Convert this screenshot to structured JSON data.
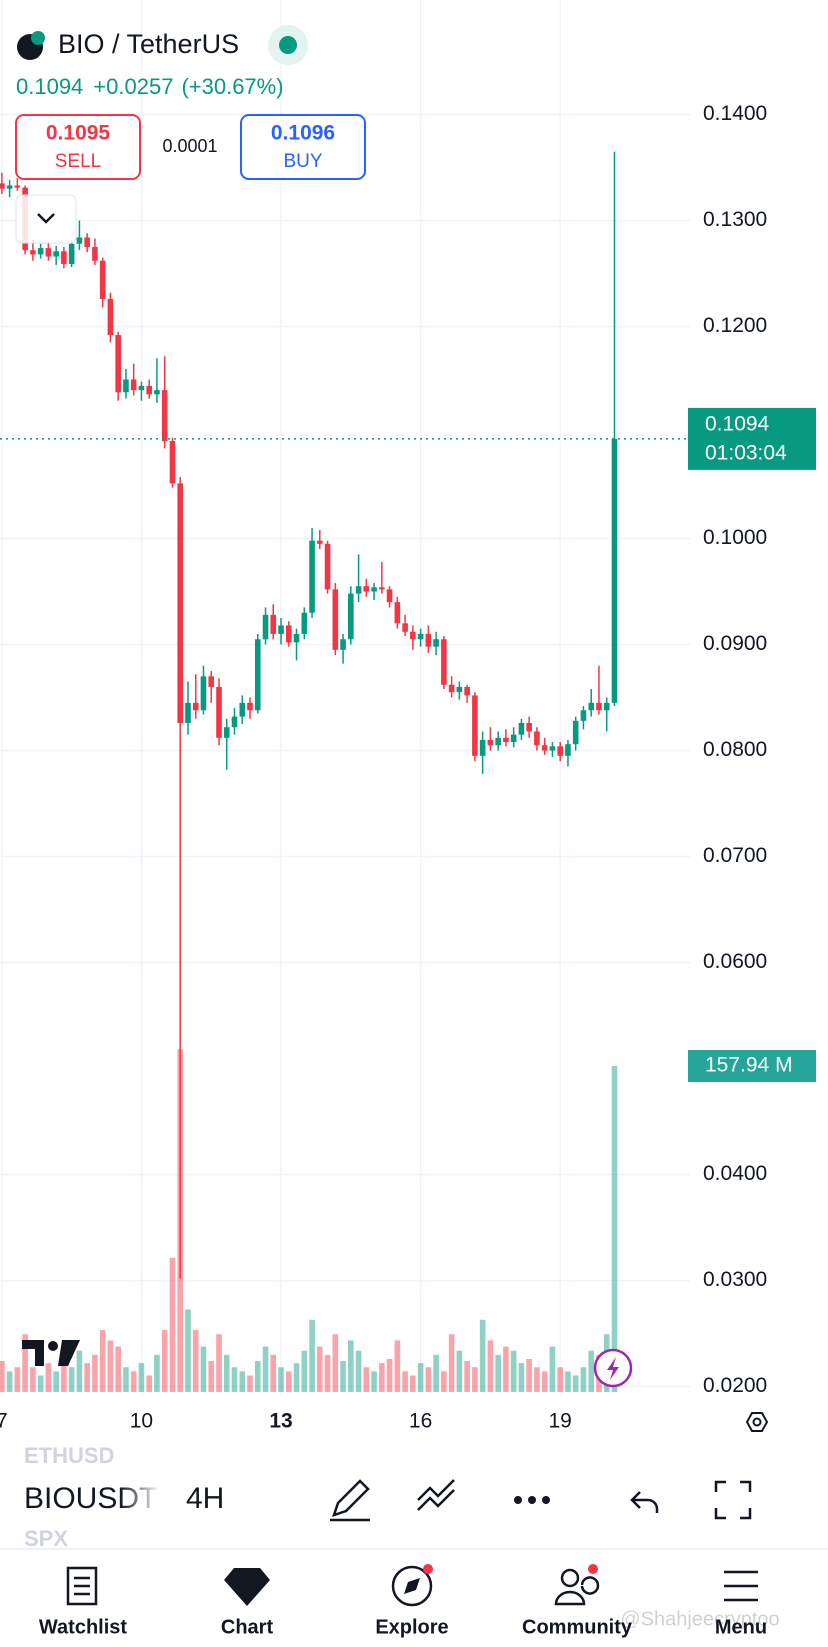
{
  "header": {
    "symbol": "BIO / TetherUS",
    "price": "0.1094",
    "change": "+0.0257",
    "change_pct": "(+30.67%)"
  },
  "trade": {
    "sell_price": "0.1095",
    "sell": "SELL",
    "spread": "0.0001",
    "buy_price": "0.1096",
    "buy": "BUY"
  },
  "chart_data": {
    "type": "candlestick",
    "x": [
      7,
      7.167,
      7.333,
      7.5,
      7.667,
      7.833,
      8,
      8.167,
      8.333,
      8.5,
      8.667,
      8.833,
      9,
      9.167,
      9.333,
      9.5,
      9.667,
      9.833,
      10,
      10.167,
      10.333,
      10.5,
      10.667,
      10.833,
      11,
      11.167,
      11.333,
      11.5,
      11.667,
      11.833,
      12,
      12.167,
      12.333,
      12.5,
      12.667,
      12.833,
      13,
      13.167,
      13.333,
      13.5,
      13.667,
      13.833,
      14,
      14.167,
      14.333,
      14.5,
      14.667,
      14.833,
      15,
      15.167,
      15.333,
      15.5,
      15.667,
      15.833,
      16,
      16.167,
      16.333,
      16.5,
      16.667,
      16.833,
      17,
      17.167,
      17.333,
      17.5,
      17.667,
      17.833,
      18,
      18.167,
      18.333,
      18.5,
      18.667,
      18.833,
      19,
      19.167,
      19.333,
      19.5,
      19.667,
      19.833,
      20,
      20.167
    ],
    "open": [
      0.1335,
      0.133,
      0.1333,
      0.1331,
      0.1272,
      0.1268,
      0.1274,
      0.1266,
      0.1271,
      0.1259,
      0.1278,
      0.1284,
      0.1275,
      0.1262,
      0.1226,
      0.1192,
      0.1138,
      0.115,
      0.114,
      0.1144,
      0.1136,
      0.114,
      0.1092,
      0.1052,
      0.0826,
      0.0845,
      0.0838,
      0.087,
      0.086,
      0.0812,
      0.0822,
      0.0832,
      0.0845,
      0.0838,
      0.0905,
      0.0928,
      0.091,
      0.0918,
      0.0902,
      0.091,
      0.093,
      0.0998,
      0.0995,
      0.0952,
      0.0895,
      0.0905,
      0.0948,
      0.0955,
      0.095,
      0.0954,
      0.0952,
      0.094,
      0.092,
      0.0912,
      0.0905,
      0.091,
      0.0898,
      0.0905,
      0.0862,
      0.0855,
      0.086,
      0.0852,
      0.0795,
      0.081,
      0.0805,
      0.0812,
      0.0808,
      0.0815,
      0.0826,
      0.0818,
      0.0805,
      0.08,
      0.0804,
      0.0795,
      0.0806,
      0.0828,
      0.0838,
      0.0845,
      0.0838,
      0.0845
    ],
    "high": [
      0.1345,
      0.1338,
      0.134,
      0.1333,
      0.1282,
      0.1278,
      0.128,
      0.1276,
      0.1275,
      0.1282,
      0.13,
      0.1288,
      0.1283,
      0.1265,
      0.1232,
      0.1195,
      0.116,
      0.1165,
      0.1148,
      0.115,
      0.117,
      0.1172,
      0.1095,
      0.1058,
      0.0865,
      0.0872,
      0.088,
      0.0875,
      0.0868,
      0.083,
      0.084,
      0.0852,
      0.085,
      0.091,
      0.0935,
      0.0938,
      0.0925,
      0.0922,
      0.0915,
      0.0935,
      0.101,
      0.1008,
      0.0998,
      0.0958,
      0.091,
      0.0955,
      0.0985,
      0.0962,
      0.0958,
      0.0978,
      0.0955,
      0.0945,
      0.0928,
      0.0918,
      0.0915,
      0.0918,
      0.0912,
      0.0908,
      0.087,
      0.0865,
      0.0862,
      0.0855,
      0.0818,
      0.0822,
      0.0818,
      0.082,
      0.0822,
      0.083,
      0.0832,
      0.0822,
      0.0812,
      0.0808,
      0.0808,
      0.081,
      0.0832,
      0.0842,
      0.0858,
      0.088,
      0.085,
      0.1365
    ],
    "low": [
      0.1325,
      0.1322,
      0.1328,
      0.1268,
      0.1262,
      0.1264,
      0.1262,
      0.1258,
      0.1255,
      0.1256,
      0.1272,
      0.127,
      0.1258,
      0.1218,
      0.1185,
      0.113,
      0.1132,
      0.1135,
      0.113,
      0.1132,
      0.1128,
      0.1085,
      0.1048,
      0.0302,
      0.0815,
      0.083,
      0.0834,
      0.0845,
      0.0805,
      0.0782,
      0.0815,
      0.0825,
      0.083,
      0.0835,
      0.09,
      0.0905,
      0.09,
      0.0898,
      0.0885,
      0.0905,
      0.0925,
      0.099,
      0.0948,
      0.089,
      0.0882,
      0.09,
      0.094,
      0.0945,
      0.0942,
      0.0948,
      0.0935,
      0.0915,
      0.0908,
      0.0895,
      0.0898,
      0.0892,
      0.089,
      0.0858,
      0.085,
      0.0848,
      0.0845,
      0.079,
      0.0778,
      0.08,
      0.08,
      0.0804,
      0.0803,
      0.081,
      0.0812,
      0.08,
      0.0796,
      0.0794,
      0.079,
      0.0785,
      0.08,
      0.082,
      0.0832,
      0.0834,
      0.0818,
      0.0842
    ],
    "close": [
      0.133,
      0.1333,
      0.1331,
      0.1272,
      0.1268,
      0.1274,
      0.1266,
      0.1271,
      0.1259,
      0.1278,
      0.1284,
      0.1275,
      0.1262,
      0.1226,
      0.1192,
      0.1138,
      0.115,
      0.114,
      0.1144,
      0.1136,
      0.114,
      0.1092,
      0.1052,
      0.0826,
      0.0845,
      0.0838,
      0.087,
      0.086,
      0.0812,
      0.0822,
      0.0832,
      0.0845,
      0.0838,
      0.0905,
      0.0928,
      0.091,
      0.0918,
      0.0902,
      0.091,
      0.093,
      0.0998,
      0.0995,
      0.0952,
      0.0895,
      0.0905,
      0.0948,
      0.0955,
      0.095,
      0.0954,
      0.0952,
      0.094,
      0.092,
      0.0912,
      0.0905,
      0.091,
      0.0898,
      0.0905,
      0.0862,
      0.0855,
      0.086,
      0.0852,
      0.0795,
      0.081,
      0.0805,
      0.0812,
      0.0808,
      0.0815,
      0.0826,
      0.0818,
      0.0805,
      0.08,
      0.0804,
      0.0795,
      0.0806,
      0.0828,
      0.0838,
      0.0845,
      0.0838,
      0.0845,
      0.1094
    ],
    "volume": {
      "values": [
        15,
        10,
        12,
        28,
        12,
        8,
        14,
        10,
        16,
        12,
        20,
        14,
        18,
        30,
        25,
        22,
        12,
        10,
        14,
        8,
        18,
        30,
        65,
        166,
        40,
        30,
        22,
        15,
        28,
        18,
        12,
        10,
        8,
        15,
        22,
        18,
        12,
        10,
        14,
        20,
        35,
        22,
        18,
        28,
        15,
        25,
        20,
        12,
        10,
        14,
        16,
        25,
        10,
        8,
        14,
        12,
        18,
        10,
        28,
        20,
        15,
        12,
        35,
        25,
        18,
        22,
        20,
        14,
        16,
        12,
        10,
        22,
        12,
        10,
        8,
        12,
        20,
        18,
        28,
        157.94
      ],
      "last_label": "157.94 M"
    },
    "xlim": [
      6.96,
      21.79
    ],
    "xticks": [
      7,
      10,
      13,
      16,
      19
    ],
    "ylim": [
      0.0193,
      0.1508
    ],
    "yticks": [
      {
        "value": 0.14,
        "label": "0.1400"
      },
      {
        "value": 0.13,
        "label": "0.1300"
      },
      {
        "value": 0.12,
        "label": "0.1200"
      },
      {
        "value": 0.1,
        "label": "0.1000"
      },
      {
        "value": 0.09,
        "label": "0.0900"
      },
      {
        "value": 0.08,
        "label": "0.0800"
      },
      {
        "value": 0.07,
        "label": "0.0700"
      },
      {
        "value": 0.06,
        "label": "0.0600"
      },
      {
        "value": 0.04,
        "label": "0.0400"
      },
      {
        "value": 0.03,
        "label": "0.0300"
      },
      {
        "value": 0.02,
        "label": "0.0200"
      }
    ],
    "last_price": {
      "value": 0.1094,
      "label": "0.1094",
      "countdown": "01:03:04"
    },
    "colors": {
      "up": "#089981",
      "down": "#f23645"
    },
    "grid": true
  },
  "toolbar": {
    "symbol": "BIOUSDT",
    "interval": "4H",
    "recent": [
      "ETHUSD",
      "SPX"
    ]
  },
  "nav": [
    "Watchlist",
    "Chart",
    "Explore",
    "Community",
    "Menu"
  ],
  "watermark": "@Shahjeecryptoo"
}
